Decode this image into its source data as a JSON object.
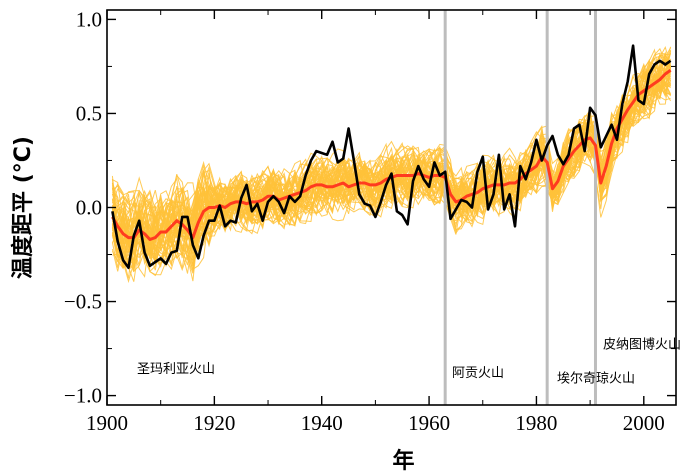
{
  "chart_data": {
    "type": "line",
    "xlabel": "年",
    "ylabel": "温度距平 (°C)",
    "xlim": [
      1900,
      2006
    ],
    "ylim": [
      -1.05,
      1.05
    ],
    "xticks": [
      1900,
      1920,
      1940,
      1960,
      1980,
      2000
    ],
    "yticks": [
      {
        "value": 1.0,
        "label": "1.0"
      },
      {
        "value": 0.5,
        "label": "0.5"
      },
      {
        "value": 0.0,
        "label": "0.0"
      },
      {
        "value": -0.5,
        "label": "−0.5"
      },
      {
        "value": -1.0,
        "label": "−1.0"
      }
    ],
    "colors": {
      "observed": "#000000",
      "ensemble_mean": "#ff3b1f",
      "ensemble_members": "#ffc23a",
      "volcano_lines": "#bdbdbd"
    },
    "annotations": [
      {
        "text": "圣玛利亚火山",
        "year": 1902,
        "y": -0.88
      },
      {
        "text": "阿贡火山",
        "year": 1963,
        "y": -0.9
      },
      {
        "text": "埃尔奇琼火山",
        "year": 1982,
        "y": -0.93
      },
      {
        "text": "皮纳图博火山",
        "year": 1991,
        "y": -0.75
      }
    ],
    "volcano_years": [
      1963,
      1982,
      1991
    ],
    "series": [
      {
        "role": "observed",
        "x_start": 1901,
        "values": [
          -0.02,
          -0.18,
          -0.28,
          -0.32,
          -0.15,
          -0.07,
          -0.24,
          -0.31,
          -0.29,
          -0.27,
          -0.3,
          -0.24,
          -0.23,
          -0.05,
          -0.05,
          -0.2,
          -0.27,
          -0.15,
          -0.07,
          -0.07,
          0.01,
          -0.1,
          -0.07,
          -0.08,
          0.05,
          0.12,
          -0.02,
          0.02,
          -0.07,
          0.03,
          0.06,
          0.03,
          -0.03,
          0.06,
          0.03,
          0.06,
          0.17,
          0.25,
          0.3,
          0.29,
          0.28,
          0.35,
          0.24,
          0.26,
          0.42,
          0.25,
          0.07,
          0.02,
          0.01,
          -0.05,
          0.03,
          0.12,
          0.18,
          -0.02,
          -0.04,
          -0.09,
          0.14,
          0.22,
          0.15,
          0.11,
          0.24,
          0.17,
          0.19,
          -0.06,
          -0.01,
          0.04,
          0.03,
          0.0,
          0.19,
          0.27,
          -0.01,
          0.07,
          0.28,
          -0.01,
          0.07,
          -0.1,
          0.22,
          0.15,
          0.24,
          0.36,
          0.25,
          0.33,
          0.38,
          0.28,
          0.23,
          0.28,
          0.42,
          0.44,
          0.3,
          0.53,
          0.49,
          0.32,
          0.38,
          0.44,
          0.36,
          0.55,
          0.67,
          0.86,
          0.57,
          0.55,
          0.71,
          0.76,
          0.78,
          0.76,
          0.78
        ]
      },
      {
        "role": "ensemble_mean",
        "x_start": 1901,
        "values": [
          -0.05,
          -0.1,
          -0.14,
          -0.16,
          -0.16,
          -0.12,
          -0.14,
          -0.17,
          -0.16,
          -0.13,
          -0.13,
          -0.1,
          -0.07,
          -0.09,
          -0.12,
          -0.16,
          -0.08,
          -0.02,
          0.0,
          0.0,
          0.01,
          0.0,
          0.02,
          0.03,
          0.03,
          0.02,
          0.03,
          0.03,
          0.04,
          0.06,
          0.06,
          0.04,
          0.05,
          0.06,
          0.07,
          0.08,
          0.09,
          0.11,
          0.12,
          0.12,
          0.11,
          0.11,
          0.12,
          0.13,
          0.11,
          0.12,
          0.13,
          0.13,
          0.12,
          0.12,
          0.13,
          0.15,
          0.16,
          0.17,
          0.17,
          0.17,
          0.17,
          0.18,
          0.17,
          0.16,
          0.17,
          0.17,
          0.16,
          0.07,
          0.03,
          0.04,
          0.06,
          0.07,
          0.08,
          0.1,
          0.11,
          0.12,
          0.12,
          0.12,
          0.13,
          0.13,
          0.15,
          0.18,
          0.2,
          0.22,
          0.27,
          0.24,
          0.1,
          0.14,
          0.22,
          0.26,
          0.3,
          0.33,
          0.36,
          0.37,
          0.33,
          0.13,
          0.22,
          0.34,
          0.42,
          0.47,
          0.52,
          0.56,
          0.6,
          0.62,
          0.64,
          0.66,
          0.68,
          0.71,
          0.73
        ]
      }
    ]
  }
}
